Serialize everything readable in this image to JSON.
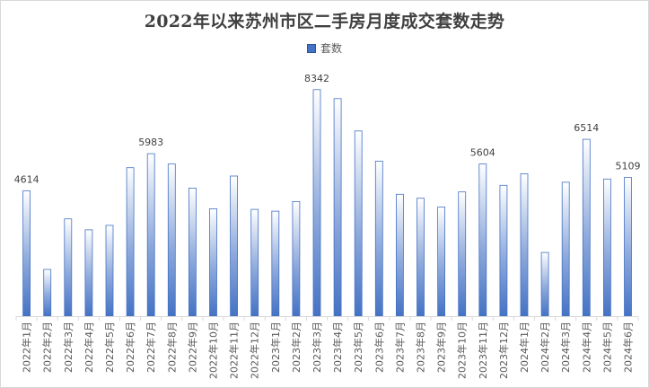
{
  "chart_data": {
    "type": "bar",
    "title": "2022年以来苏州市区二手房月度成交套数走势",
    "legend": {
      "entries": [
        "套数"
      ],
      "placement": "top-center"
    },
    "xlabel": "",
    "ylabel": "",
    "grid": false,
    "ylim": [
      0,
      8600
    ],
    "categories": [
      "2022年1月",
      "2022年2月",
      "2022年3月",
      "2022年4月",
      "2022年5月",
      "2022年6月",
      "2022年7月",
      "2022年8月",
      "2022年9月",
      "2022年10月",
      "2022年11月",
      "2022年12月",
      "2023年1月",
      "2023年2月",
      "2023年3月",
      "2023年4月",
      "2023年5月",
      "2023年6月",
      "2023年7月",
      "2023年8月",
      "2023年9月",
      "2023年10月",
      "2023年11月",
      "2023年12月",
      "2024年1月",
      "2024年2月",
      "2024年3月",
      "2024年4月",
      "2024年5月",
      "2024年6月"
    ],
    "series": [
      {
        "name": "套数",
        "color": "#4472c4",
        "values": [
          4614,
          1721,
          3582,
          3180,
          3345,
          5466,
          5983,
          5602,
          4717,
          3957,
          5159,
          3934,
          3867,
          4219,
          8342,
          8010,
          6821,
          5709,
          4490,
          4343,
          4018,
          4574,
          5604,
          4818,
          5243,
          2344,
          4931,
          6514,
          5052,
          5109
        ]
      }
    ],
    "data_labels": [
      {
        "index": 0,
        "value": "4614"
      },
      {
        "index": 6,
        "value": "5983"
      },
      {
        "index": 14,
        "value": "8342"
      },
      {
        "index": 22,
        "value": "5604"
      },
      {
        "index": 27,
        "value": "6514"
      },
      {
        "index": 29,
        "value": "5109"
      }
    ]
  }
}
